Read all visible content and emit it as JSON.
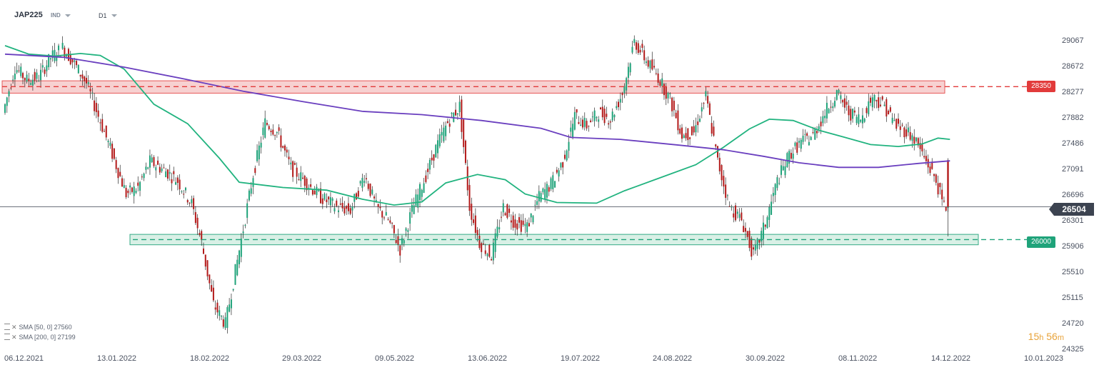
{
  "header": {
    "symbol": "JAP225",
    "type": "IND",
    "timeframe": "D1"
  },
  "indicators": [
    {
      "label": "SMA [50, 0] 27560"
    },
    {
      "label": "SMA [200, 0] 27199"
    }
  ],
  "countdown": {
    "hours": "15",
    "h": "h",
    "minutes": "56",
    "m": "m"
  },
  "current_price": "26504",
  "levels": {
    "resistance": "28350",
    "support": "26000"
  },
  "colors": {
    "bull": "#1fa37a",
    "bear": "#b31b1b",
    "sma50": "#21b37f",
    "sma200": "#6a3fbf",
    "resistance": "#e23b3b",
    "support": "#1fa37a"
  },
  "chart_data": {
    "type": "candlestick",
    "symbol": "JAP225",
    "timeframe": "D1",
    "y_ticks": [
      29067,
      28672,
      28277,
      27882,
      27486,
      27091,
      26696,
      26301,
      25906,
      25510,
      25115,
      24720,
      24325
    ],
    "x_ticks": [
      "06.12.2021",
      "13.01.2022",
      "18.02.2022",
      "29.03.2022",
      "09.05.2022",
      "13.06.2022",
      "19.07.2022",
      "24.08.2022",
      "30.09.2022",
      "08.11.2022",
      "14.12.2022",
      "10.01.2023"
    ],
    "ylim": [
      24250,
      29450
    ],
    "current_price": 26504,
    "horizontal_levels": [
      {
        "value": 28350,
        "zone": [
          28250,
          28440
        ],
        "style": "dashed"
      },
      {
        "value": 26000,
        "zone": [
          25920,
          26080
        ],
        "style": "dashed"
      }
    ],
    "sma": [
      {
        "name": "SMA [50, 0]",
        "last": 27560,
        "points": [
          [
            0,
            28980
          ],
          [
            12,
            28850
          ],
          [
            25,
            28820
          ],
          [
            38,
            28860
          ],
          [
            48,
            28830
          ],
          [
            60,
            28620
          ],
          [
            75,
            28080
          ],
          [
            92,
            27780
          ],
          [
            108,
            27250
          ],
          [
            118,
            26880
          ],
          [
            140,
            26800
          ],
          [
            162,
            26760
          ],
          [
            180,
            26620
          ],
          [
            196,
            26530
          ],
          [
            210,
            26580
          ],
          [
            222,
            26870
          ],
          [
            238,
            27000
          ],
          [
            252,
            26920
          ],
          [
            262,
            26700
          ],
          [
            278,
            26570
          ],
          [
            298,
            26560
          ],
          [
            312,
            26750
          ],
          [
            330,
            26950
          ],
          [
            348,
            27150
          ],
          [
            362,
            27420
          ],
          [
            375,
            27700
          ],
          [
            385,
            27850
          ],
          [
            397,
            27830
          ],
          [
            410,
            27680
          ],
          [
            422,
            27580
          ],
          [
            436,
            27460
          ],
          [
            450,
            27430
          ],
          [
            462,
            27470
          ],
          [
            470,
            27560
          ],
          [
            476,
            27540
          ]
        ]
      },
      {
        "name": "SMA [200, 0]",
        "last": 27199,
        "points": [
          [
            0,
            28850
          ],
          [
            30,
            28800
          ],
          [
            60,
            28650
          ],
          [
            90,
            28470
          ],
          [
            120,
            28280
          ],
          [
            150,
            28120
          ],
          [
            180,
            27970
          ],
          [
            210,
            27920
          ],
          [
            240,
            27830
          ],
          [
            270,
            27710
          ],
          [
            285,
            27570
          ],
          [
            310,
            27540
          ],
          [
            340,
            27450
          ],
          [
            362,
            27380
          ],
          [
            382,
            27280
          ],
          [
            400,
            27180
          ],
          [
            420,
            27110
          ],
          [
            440,
            27110
          ],
          [
            460,
            27170
          ],
          [
            476,
            27210
          ]
        ]
      }
    ],
    "candle_seed": [
      [
        0,
        27950
      ],
      [
        6,
        28650
      ],
      [
        12,
        28450
      ],
      [
        18,
        28500
      ],
      [
        24,
        28800
      ],
      [
        30,
        28950
      ],
      [
        36,
        28700
      ],
      [
        42,
        28400
      ],
      [
        48,
        27900
      ],
      [
        54,
        27400
      ],
      [
        62,
        26700
      ],
      [
        68,
        26800
      ],
      [
        74,
        27200
      ],
      [
        82,
        27050
      ],
      [
        88,
        26900
      ],
      [
        95,
        26550
      ],
      [
        100,
        25950
      ],
      [
        106,
        25000
      ],
      [
        112,
        24700
      ],
      [
        120,
        26000
      ],
      [
        126,
        27000
      ],
      [
        132,
        27800
      ],
      [
        138,
        27650
      ],
      [
        145,
        27100
      ],
      [
        152,
        26900
      ],
      [
        160,
        26650
      ],
      [
        168,
        26500
      ],
      [
        175,
        26450
      ],
      [
        182,
        27000
      ],
      [
        188,
        26500
      ],
      [
        194,
        26300
      ],
      [
        200,
        25850
      ],
      [
        206,
        26450
      ],
      [
        212,
        26900
      ],
      [
        218,
        27400
      ],
      [
        224,
        27800
      ],
      [
        230,
        28050
      ],
      [
        235,
        26500
      ],
      [
        240,
        25950
      ],
      [
        246,
        25750
      ],
      [
        252,
        26500
      ],
      [
        258,
        26250
      ],
      [
        264,
        26200
      ],
      [
        270,
        26650
      ],
      [
        276,
        26850
      ],
      [
        282,
        27200
      ],
      [
        288,
        27900
      ],
      [
        294,
        27750
      ],
      [
        300,
        27950
      ],
      [
        306,
        27850
      ],
      [
        312,
        28250
      ],
      [
        318,
        29050
      ],
      [
        324,
        28750
      ],
      [
        330,
        28500
      ],
      [
        336,
        28150
      ],
      [
        342,
        27600
      ],
      [
        348,
        27650
      ],
      [
        354,
        28200
      ],
      [
        360,
        27200
      ],
      [
        366,
        26500
      ],
      [
        372,
        26300
      ],
      [
        378,
        25750
      ],
      [
        384,
        26250
      ],
      [
        390,
        26900
      ],
      [
        396,
        27300
      ],
      [
        402,
        27500
      ],
      [
        408,
        27600
      ],
      [
        414,
        27950
      ],
      [
        420,
        28250
      ],
      [
        426,
        27950
      ],
      [
        432,
        27850
      ],
      [
        438,
        28200
      ],
      [
        444,
        28050
      ],
      [
        450,
        27750
      ],
      [
        456,
        27650
      ],
      [
        460,
        27500
      ],
      [
        465,
        27200
      ],
      [
        470,
        26900
      ],
      [
        474,
        26500
      ]
    ]
  }
}
